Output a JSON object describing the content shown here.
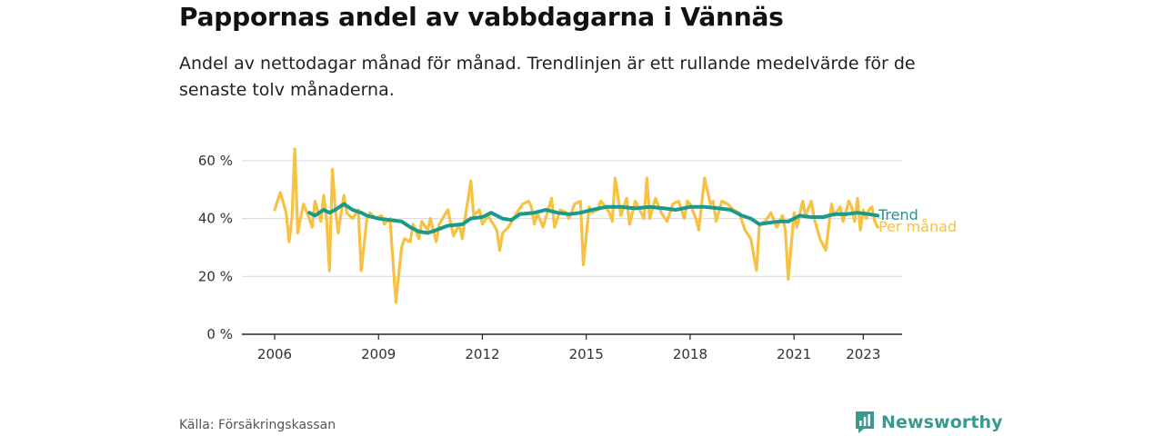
{
  "header": {
    "title": "Pappornas andel av vabbdagarna i Vännäs",
    "subtitle": "Andel av nettodagar månad för månad. Trendlinjen är ett rullande medelvärde för de senaste tolv månaderna."
  },
  "footer": {
    "source": "Källa: Försäkringskassan",
    "brand": "Newsworthy"
  },
  "colors": {
    "monthly": "#f7c143",
    "trend": "#1a9a8b",
    "grid": "#d9d9d9",
    "brand": "#3a9a8f"
  },
  "chart_data": {
    "type": "line",
    "title": "Pappornas andel av vabbdagarna i Vännäs",
    "subtitle": "Andel av nettodagar månad för månad. Trendlinjen är ett rullande medelvärde för de senaste tolv månaderna.",
    "xlabel": "",
    "ylabel": "",
    "xlim": [
      "2006-01",
      "2023-05"
    ],
    "ylim": [
      0,
      70
    ],
    "y_ticks": [
      0,
      20,
      40,
      60
    ],
    "y_tick_labels": [
      "0 %",
      "20 %",
      "40 %",
      "60 %"
    ],
    "x_ticks": [
      "2006-01",
      "2009-01",
      "2012-01",
      "2015-01",
      "2018-01",
      "2021-01",
      "2023-01"
    ],
    "x_tick_labels": [
      "2006",
      "2009",
      "2012",
      "2015",
      "2018",
      "2021",
      "2023"
    ],
    "grid": true,
    "legend": "end-of-line labels at right",
    "series": [
      {
        "name": "Per månad",
        "color": "#f7c143",
        "points": [
          {
            "x": "2006-01",
            "y": 43
          },
          {
            "x": "2006-03",
            "y": 49
          },
          {
            "x": "2006-05",
            "y": 42
          },
          {
            "x": "2006-06",
            "y": 32
          },
          {
            "x": "2006-07",
            "y": 40
          },
          {
            "x": "2006-08",
            "y": 64
          },
          {
            "x": "2006-09",
            "y": 35
          },
          {
            "x": "2006-11",
            "y": 45
          },
          {
            "x": "2007-01",
            "y": 40
          },
          {
            "x": "2007-02",
            "y": 37
          },
          {
            "x": "2007-03",
            "y": 46
          },
          {
            "x": "2007-05",
            "y": 39
          },
          {
            "x": "2007-06",
            "y": 48
          },
          {
            "x": "2007-07",
            "y": 40
          },
          {
            "x": "2007-08",
            "y": 22
          },
          {
            "x": "2007-09",
            "y": 57
          },
          {
            "x": "2007-10",
            "y": 44
          },
          {
            "x": "2007-11",
            "y": 35
          },
          {
            "x": "2008-01",
            "y": 48
          },
          {
            "x": "2008-02",
            "y": 42
          },
          {
            "x": "2008-04",
            "y": 40
          },
          {
            "x": "2008-06",
            "y": 43
          },
          {
            "x": "2008-07",
            "y": 22
          },
          {
            "x": "2008-09",
            "y": 40
          },
          {
            "x": "2008-10",
            "y": 42
          },
          {
            "x": "2008-12",
            "y": 40
          },
          {
            "x": "2009-02",
            "y": 41
          },
          {
            "x": "2009-03",
            "y": 38
          },
          {
            "x": "2009-05",
            "y": 40
          },
          {
            "x": "2009-07",
            "y": 11
          },
          {
            "x": "2009-09",
            "y": 30
          },
          {
            "x": "2009-10",
            "y": 33
          },
          {
            "x": "2009-12",
            "y": 32
          },
          {
            "x": "2010-01",
            "y": 38
          },
          {
            "x": "2010-03",
            "y": 33
          },
          {
            "x": "2010-04",
            "y": 39
          },
          {
            "x": "2010-06",
            "y": 36
          },
          {
            "x": "2010-07",
            "y": 40
          },
          {
            "x": "2010-09",
            "y": 32
          },
          {
            "x": "2010-10",
            "y": 38
          },
          {
            "x": "2011-01",
            "y": 43
          },
          {
            "x": "2011-03",
            "y": 34
          },
          {
            "x": "2011-05",
            "y": 38
          },
          {
            "x": "2011-06",
            "y": 33
          },
          {
            "x": "2011-07",
            "y": 40
          },
          {
            "x": "2011-09",
            "y": 53
          },
          {
            "x": "2011-10",
            "y": 41
          },
          {
            "x": "2011-12",
            "y": 43
          },
          {
            "x": "2012-01",
            "y": 38
          },
          {
            "x": "2012-03",
            "y": 41
          },
          {
            "x": "2012-06",
            "y": 36
          },
          {
            "x": "2012-07",
            "y": 29
          },
          {
            "x": "2012-08",
            "y": 35
          },
          {
            "x": "2012-10",
            "y": 37
          },
          {
            "x": "2013-01",
            "y": 42
          },
          {
            "x": "2013-03",
            "y": 45
          },
          {
            "x": "2013-05",
            "y": 46
          },
          {
            "x": "2013-06",
            "y": 44
          },
          {
            "x": "2013-07",
            "y": 38
          },
          {
            "x": "2013-08",
            "y": 42
          },
          {
            "x": "2013-10",
            "y": 37
          },
          {
            "x": "2014-01",
            "y": 47
          },
          {
            "x": "2014-02",
            "y": 37
          },
          {
            "x": "2014-04",
            "y": 43
          },
          {
            "x": "2014-06",
            "y": 42
          },
          {
            "x": "2014-07",
            "y": 40
          },
          {
            "x": "2014-09",
            "y": 45
          },
          {
            "x": "2014-11",
            "y": 46
          },
          {
            "x": "2014-12",
            "y": 24
          },
          {
            "x": "2015-02",
            "y": 44
          },
          {
            "x": "2015-03",
            "y": 42
          },
          {
            "x": "2015-05",
            "y": 43
          },
          {
            "x": "2015-06",
            "y": 46
          },
          {
            "x": "2015-07",
            "y": 45
          },
          {
            "x": "2015-09",
            "y": 42
          },
          {
            "x": "2015-10",
            "y": 39
          },
          {
            "x": "2015-11",
            "y": 54
          },
          {
            "x": "2016-01",
            "y": 41
          },
          {
            "x": "2016-03",
            "y": 47
          },
          {
            "x": "2016-04",
            "y": 38
          },
          {
            "x": "2016-06",
            "y": 46
          },
          {
            "x": "2016-08",
            "y": 42
          },
          {
            "x": "2016-09",
            "y": 40
          },
          {
            "x": "2016-10",
            "y": 54
          },
          {
            "x": "2016-11",
            "y": 40
          },
          {
            "x": "2017-01",
            "y": 47
          },
          {
            "x": "2017-03",
            "y": 42
          },
          {
            "x": "2017-05",
            "y": 39
          },
          {
            "x": "2017-07",
            "y": 45
          },
          {
            "x": "2017-09",
            "y": 46
          },
          {
            "x": "2017-11",
            "y": 40
          },
          {
            "x": "2017-12",
            "y": 46
          },
          {
            "x": "2018-01",
            "y": 45
          },
          {
            "x": "2018-03",
            "y": 40
          },
          {
            "x": "2018-04",
            "y": 36
          },
          {
            "x": "2018-06",
            "y": 54
          },
          {
            "x": "2018-08",
            "y": 45
          },
          {
            "x": "2018-09",
            "y": 46
          },
          {
            "x": "2018-10",
            "y": 39
          },
          {
            "x": "2018-12",
            "y": 46
          },
          {
            "x": "2019-02",
            "y": 45
          },
          {
            "x": "2019-04",
            "y": 43
          },
          {
            "x": "2019-06",
            "y": 42
          },
          {
            "x": "2019-08",
            "y": 36
          },
          {
            "x": "2019-10",
            "y": 33
          },
          {
            "x": "2019-12",
            "y": 22
          },
          {
            "x": "2020-01",
            "y": 38
          },
          {
            "x": "2020-03",
            "y": 39
          },
          {
            "x": "2020-05",
            "y": 42
          },
          {
            "x": "2020-07",
            "y": 37
          },
          {
            "x": "2020-09",
            "y": 41
          },
          {
            "x": "2020-10",
            "y": 36
          },
          {
            "x": "2020-11",
            "y": 19
          },
          {
            "x": "2021-01",
            "y": 42
          },
          {
            "x": "2021-02",
            "y": 37
          },
          {
            "x": "2021-04",
            "y": 46
          },
          {
            "x": "2021-05",
            "y": 41
          },
          {
            "x": "2021-07",
            "y": 46
          },
          {
            "x": "2021-08",
            "y": 40
          },
          {
            "x": "2021-10",
            "y": 33
          },
          {
            "x": "2021-12",
            "y": 29
          },
          {
            "x": "2022-02",
            "y": 45
          },
          {
            "x": "2022-03",
            "y": 41
          },
          {
            "x": "2022-05",
            "y": 44
          },
          {
            "x": "2022-06",
            "y": 39
          },
          {
            "x": "2022-08",
            "y": 46
          },
          {
            "x": "2022-09",
            "y": 44
          },
          {
            "x": "2022-10",
            "y": 39
          },
          {
            "x": "2022-11",
            "y": 47
          },
          {
            "x": "2022-12",
            "y": 36
          },
          {
            "x": "2023-01",
            "y": 43
          },
          {
            "x": "2023-02",
            "y": 40
          },
          {
            "x": "2023-03",
            "y": 43
          },
          {
            "x": "2023-04",
            "y": 44
          },
          {
            "x": "2023-05",
            "y": 39
          },
          {
            "x": "2023-06",
            "y": 37
          }
        ]
      },
      {
        "name": "Trend",
        "color": "#1a9a8b",
        "points": [
          {
            "x": "2007-01",
            "y": 42
          },
          {
            "x": "2007-03",
            "y": 41
          },
          {
            "x": "2007-06",
            "y": 43
          },
          {
            "x": "2007-08",
            "y": 42
          },
          {
            "x": "2007-10",
            "y": 43
          },
          {
            "x": "2008-01",
            "y": 45
          },
          {
            "x": "2008-04",
            "y": 43
          },
          {
            "x": "2008-07",
            "y": 42
          },
          {
            "x": "2008-09",
            "y": 41
          },
          {
            "x": "2009-01",
            "y": 40
          },
          {
            "x": "2009-05",
            "y": 39.5
          },
          {
            "x": "2009-09",
            "y": 39
          },
          {
            "x": "2009-12",
            "y": 37
          },
          {
            "x": "2010-03",
            "y": 35.5
          },
          {
            "x": "2010-06",
            "y": 35
          },
          {
            "x": "2010-09",
            "y": 36
          },
          {
            "x": "2011-01",
            "y": 37.5
          },
          {
            "x": "2011-06",
            "y": 38
          },
          {
            "x": "2011-09",
            "y": 40
          },
          {
            "x": "2012-01",
            "y": 40.5
          },
          {
            "x": "2012-04",
            "y": 42
          },
          {
            "x": "2012-08",
            "y": 40
          },
          {
            "x": "2012-11",
            "y": 39.5
          },
          {
            "x": "2013-02",
            "y": 41.5
          },
          {
            "x": "2013-07",
            "y": 42
          },
          {
            "x": "2013-11",
            "y": 43
          },
          {
            "x": "2014-03",
            "y": 42
          },
          {
            "x": "2014-07",
            "y": 41.5
          },
          {
            "x": "2014-11",
            "y": 42
          },
          {
            "x": "2015-03",
            "y": 43
          },
          {
            "x": "2015-08",
            "y": 44
          },
          {
            "x": "2016-01",
            "y": 44
          },
          {
            "x": "2016-06",
            "y": 43.5
          },
          {
            "x": "2016-11",
            "y": 44
          },
          {
            "x": "2017-04",
            "y": 43.5
          },
          {
            "x": "2017-08",
            "y": 43
          },
          {
            "x": "2018-01",
            "y": 44
          },
          {
            "x": "2018-06",
            "y": 44
          },
          {
            "x": "2018-11",
            "y": 43.5
          },
          {
            "x": "2019-03",
            "y": 43
          },
          {
            "x": "2019-07",
            "y": 41
          },
          {
            "x": "2019-10",
            "y": 40
          },
          {
            "x": "2020-01",
            "y": 38
          },
          {
            "x": "2020-04",
            "y": 38.5
          },
          {
            "x": "2020-08",
            "y": 39
          },
          {
            "x": "2020-11",
            "y": 39
          },
          {
            "x": "2021-03",
            "y": 41
          },
          {
            "x": "2021-07",
            "y": 40.5
          },
          {
            "x": "2021-11",
            "y": 40.5
          },
          {
            "x": "2022-03",
            "y": 41.5
          },
          {
            "x": "2022-07",
            "y": 41.5
          },
          {
            "x": "2022-11",
            "y": 42
          },
          {
            "x": "2023-03",
            "y": 41.5
          },
          {
            "x": "2023-06",
            "y": 41
          }
        ]
      }
    ]
  }
}
